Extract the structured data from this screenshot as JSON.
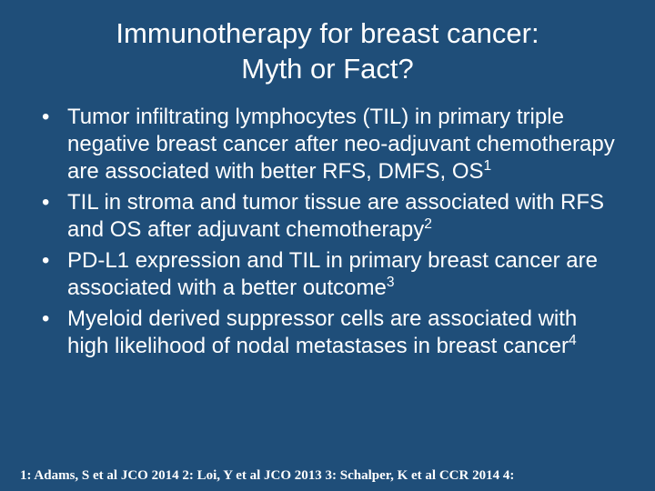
{
  "background_color": "#1f4e79",
  "text_color": "#ffffff",
  "title": {
    "line1": "Immunotherapy for breast cancer:",
    "line2": "Myth or Fact?",
    "font_size": 31
  },
  "bullets": {
    "font_size": 24,
    "items": [
      {
        "text_html": "Tumor infiltrating lymphocytes (TIL) in primary triple negative breast cancer after neo-adjuvant chemotherapy are associated with better RFS, DMFS, OS<span class=\"sup\">1</span>"
      },
      {
        "text_html": "TIL in stroma and tumor tissue are associated with RFS and OS after adjuvant chemotherapy<span class=\"sup\">2</span>"
      },
      {
        "text_html": "PD-L1 expression and TIL in primary breast cancer are associated with a better outcome<span class=\"sup\">3</span>"
      },
      {
        "text_html": "Myeloid derived suppressor cells are associated with high likelihood of nodal metastases in breast cancer<span class=\"sup\">4</span>"
      }
    ]
  },
  "references": {
    "font_size": 15,
    "text": "1: Adams, S et al JCO 2014   2:  Loi, Y et al JCO 2013   3: Schalper, K et al CCR 2014   4:"
  }
}
